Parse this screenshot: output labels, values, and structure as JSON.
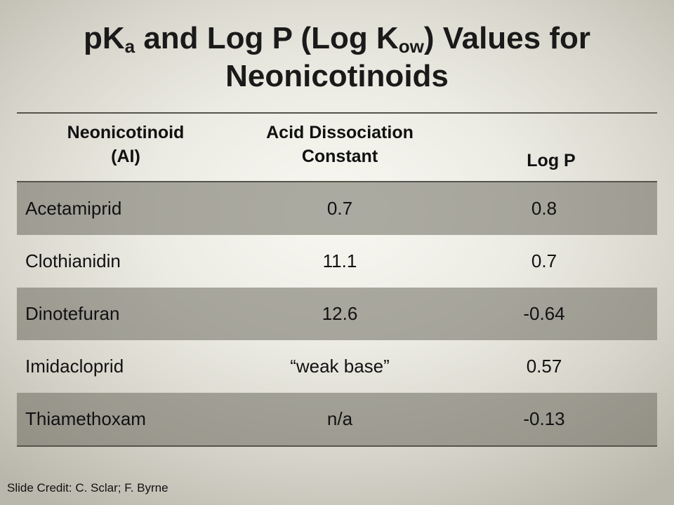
{
  "slide": {
    "title": {
      "part1": "pK",
      "sub1": "a",
      "part2": " and Log P (Log K",
      "sub2": "ow",
      "part3": ") Values for",
      "line2": "Neonicotinoids"
    },
    "table": {
      "headers": {
        "col1_line1": "Neonicotinoid",
        "col1_line2": "(AI)",
        "col2_line1": "Acid Dissociation",
        "col2_line2": "Constant",
        "col3": "Log P"
      },
      "rows": [
        {
          "name": "Acetamiprid",
          "acid_dissociation_constant": "0.7",
          "log_p": "0.8"
        },
        {
          "name": "Clothianidin",
          "acid_dissociation_constant": "11.1",
          "log_p": "0.7"
        },
        {
          "name": "Dinotefuran",
          "acid_dissociation_constant": "12.6",
          "log_p": "-0.64"
        },
        {
          "name": "Imidacloprid",
          "acid_dissociation_constant": "“weak base”",
          "log_p": "0.57"
        },
        {
          "name": "Thiamethoxam",
          "acid_dissociation_constant": "n/a",
          "log_p": "-0.13"
        }
      ]
    },
    "credit": "Slide Credit: C. Sclar; F. Byrne"
  }
}
